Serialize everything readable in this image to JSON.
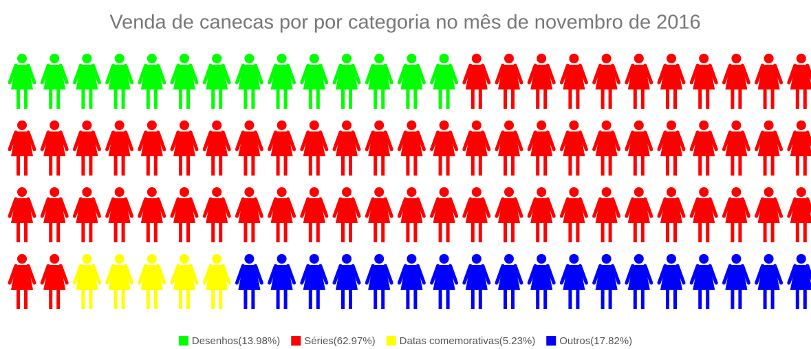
{
  "chart_data": {
    "type": "pictogram",
    "title": "Venda de canecas por por categoria no mês de novembro de 2016",
    "values": [
      13.98,
      62.97,
      5.23,
      17.82
    ],
    "value_labels": [
      "Desenhos(13.98%)",
      "Séries(62.97%)",
      "Datas comemorativas(5.23%)",
      "Outros(17.82%)"
    ],
    "colors": [
      "#00ff00",
      "#ff0000",
      "#ffff00",
      "#0000ff"
    ]
  }
}
